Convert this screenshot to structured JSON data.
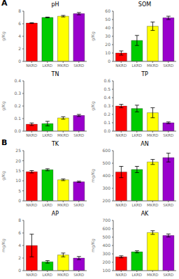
{
  "chart_data": [
    {
      "type": "bar",
      "title": "pH",
      "annotation": "A",
      "ylabel": "g/Kg",
      "categories": [
        "NKRD",
        "LKRD",
        "MKRD",
        "SKRD"
      ],
      "colors": [
        "#ff0000",
        "#00cc00",
        "#ffff00",
        "#9900cc"
      ],
      "values": [
        6.1,
        7.0,
        7.2,
        7.6
      ],
      "errors": [
        0.05,
        0.06,
        0.12,
        0.18
      ],
      "ylim": [
        0,
        8
      ],
      "yticks": [
        0,
        2,
        4,
        6,
        8
      ]
    },
    {
      "type": "bar",
      "title": "SOM",
      "ylabel": "g/Kg",
      "categories": [
        "NKRD",
        "LKRD",
        "MKRD",
        "SKRD"
      ],
      "colors": [
        "#ff0000",
        "#00cc00",
        "#ffff00",
        "#9900cc"
      ],
      "values": [
        10,
        25,
        42,
        52
      ],
      "errors": [
        2.5,
        6.0,
        5.0,
        2.0
      ],
      "ylim": [
        0,
        60
      ],
      "yticks": [
        0,
        10,
        20,
        30,
        40,
        50,
        60
      ]
    },
    {
      "type": "bar",
      "title": "TN",
      "ylabel": "g/Kg",
      "categories": [
        "NKRD",
        "LKRD",
        "MKRD",
        "SKRD"
      ],
      "colors": [
        "#ff0000",
        "#00cc00",
        "#ffff00",
        "#9900cc"
      ],
      "values": [
        0.055,
        0.06,
        0.105,
        0.125
      ],
      "errors": [
        0.01,
        0.018,
        0.01,
        0.008
      ],
      "ylim": [
        0,
        0.4
      ],
      "yticks": [
        {
          "value": 0,
          "label": "0.0"
        },
        0.1,
        0.2,
        0.3,
        0.4
      ]
    },
    {
      "type": "bar",
      "title": "TP",
      "ylabel": "g/Kg",
      "categories": [
        "NKRD",
        "LKRD",
        "MKRD",
        "SKRD"
      ],
      "colors": [
        "#ff0000",
        "#00cc00",
        "#ffff00",
        "#9900cc"
      ],
      "values": [
        0.3,
        0.27,
        0.22,
        0.1
      ],
      "errors": [
        0.02,
        0.04,
        0.06,
        0.01
      ],
      "ylim": [
        0,
        0.6
      ],
      "yticks": [
        {
          "value": 0,
          "label": "0.0"
        },
        0.1,
        0.2,
        0.3,
        0.4,
        0.5,
        0.6
      ]
    },
    {
      "type": "bar",
      "title": "TK",
      "annotation": "B",
      "ylabel": "g/Kg",
      "categories": [
        "NKRD",
        "LKRD",
        "MKRD",
        "SKRD"
      ],
      "colors": [
        "#ff0000",
        "#00cc00",
        "#ffff00",
        "#9900cc"
      ],
      "values": [
        14.5,
        15.5,
        10.5,
        9.5
      ],
      "errors": [
        0.6,
        0.5,
        0.4,
        0.3
      ],
      "ylim": [
        0,
        25
      ],
      "yticks": [
        0,
        5,
        10,
        15,
        20,
        25
      ]
    },
    {
      "type": "bar",
      "title": "AN",
      "ylabel": "mg/Kg",
      "categories": [
        "NKRD",
        "LKRD",
        "MKRD",
        "SKRD"
      ],
      "colors": [
        "#ff0000",
        "#00cc00",
        "#ffff00",
        "#9900cc"
      ],
      "values": [
        430,
        450,
        510,
        545
      ],
      "errors": [
        45,
        25,
        20,
        35
      ],
      "ylim": [
        200,
        600
      ],
      "yticks": [
        200,
        300,
        400,
        500,
        600
      ]
    },
    {
      "type": "bar",
      "title": "AP",
      "ylabel": "mg/Kg",
      "categories": [
        "NKRD",
        "LKRD",
        "MKRD",
        "SKRD"
      ],
      "colors": [
        "#ff0000",
        "#00cc00",
        "#ffff00",
        "#9900cc"
      ],
      "values": [
        4.0,
        1.4,
        2.5,
        2.0
      ],
      "errors": [
        1.8,
        0.2,
        0.3,
        0.25
      ],
      "ylim": [
        0,
        8
      ],
      "yticks": [
        0,
        2,
        4,
        6,
        8
      ]
    },
    {
      "type": "bar",
      "title": "AK",
      "ylabel": "mg/Kg",
      "categories": [
        "NKRD",
        "LKRD",
        "MKRD",
        "SKRD"
      ],
      "colors": [
        "#ff0000",
        "#00cc00",
        "#ffff00",
        "#9900cc"
      ],
      "values": [
        265,
        325,
        555,
        520
      ],
      "errors": [
        12,
        12,
        22,
        18
      ],
      "ylim": [
        100,
        700
      ],
      "yticks": [
        100,
        200,
        300,
        400,
        500,
        600,
        700
      ]
    }
  ]
}
